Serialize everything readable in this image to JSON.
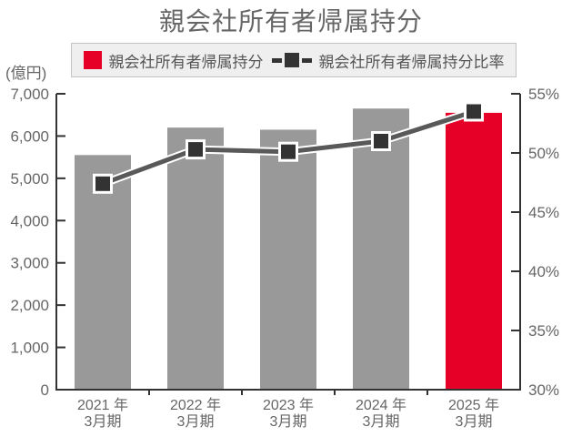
{
  "title": "親会社所有者帰属持分",
  "unit_label": "(億円)",
  "legend": {
    "bar_label": "親会社所有者帰属持分",
    "line_label": "親会社所有者帰属持分比率"
  },
  "colors": {
    "bar_default": "#999999",
    "bar_highlight": "#e60027",
    "line": "#595959",
    "line_casing": "#ffffff",
    "marker_fill": "#333333",
    "marker_border": "#ffffff",
    "axis": "#333333",
    "text": "#666666",
    "legend_bg": "#efefef",
    "legend_border": "#c3c3c3",
    "legend_text": "#555555"
  },
  "chart_data": {
    "type": "combo",
    "categories": [
      {
        "line1": "2021 年",
        "line2": "3月期"
      },
      {
        "line1": "2022 年",
        "line2": "3月期"
      },
      {
        "line1": "2023 年",
        "line2": "3月期"
      },
      {
        "line1": "2024 年",
        "line2": "3月期"
      },
      {
        "line1": "2025 年",
        "line2": "3月期"
      }
    ],
    "series": [
      {
        "name": "親会社所有者帰属持分",
        "type": "bar",
        "axis": "left",
        "values": [
          5550,
          6200,
          6150,
          6650,
          6550
        ],
        "highlight_index": 4
      },
      {
        "name": "親会社所有者帰属持分比率",
        "type": "line",
        "axis": "right",
        "values": [
          47.4,
          50.3,
          50.1,
          51.0,
          53.5
        ]
      }
    ],
    "left_axis": {
      "label": "(億円)",
      "min": 0,
      "max": 7000,
      "tick_step": 1000,
      "tick_labels": [
        "0",
        "1,000",
        "2,000",
        "3,000",
        "4,000",
        "5,000",
        "6,000",
        "7,000"
      ]
    },
    "right_axis": {
      "min": 30,
      "max": 55,
      "tick_step": 5,
      "tick_labels": [
        "30%",
        "35%",
        "40%",
        "45%",
        "50%",
        "55%"
      ]
    },
    "legend_position": "top",
    "grid": false
  }
}
